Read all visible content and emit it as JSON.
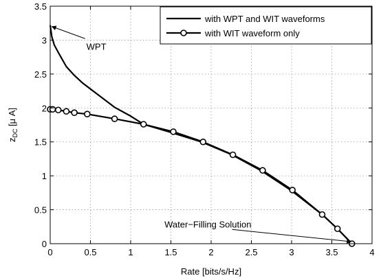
{
  "chart_data": {
    "type": "line",
    "title": "",
    "xlabel": "Rate [bits/s/Hz]",
    "ylabel": {
      "main": "z",
      "sub": "DC",
      "unit": " [μ A]"
    },
    "xlim": [
      0,
      4
    ],
    "ylim": [
      0,
      3.5
    ],
    "x_ticks": [
      0,
      0.5,
      1,
      1.5,
      2,
      2.5,
      3,
      3.5,
      4
    ],
    "x_tick_labels": [
      "0",
      "0.5",
      "1",
      "1.5",
      "2",
      "2.5",
      "3",
      "3.5",
      "4"
    ],
    "y_ticks": [
      0,
      0.5,
      1,
      1.5,
      2,
      2.5,
      3,
      3.5
    ],
    "y_tick_labels": [
      "0",
      "0.5",
      "1",
      "1.5",
      "2",
      "2.5",
      "3",
      "3.5"
    ],
    "grid": true,
    "legend_position": "top-right",
    "colors": {
      "line": "#000000",
      "grid": "#9a9a9a",
      "axes": "#000000",
      "marker_fill": "#ffffff"
    },
    "series": [
      {
        "name": "with WPT and WIT waveforms",
        "marker": "none",
        "x": [
          0,
          0.02,
          0.05,
          0.1,
          0.2,
          0.3,
          0.4,
          0.6,
          0.8,
          1.0,
          1.16,
          1.5,
          1.88,
          2.26,
          2.63,
          3.0,
          3.38,
          3.57,
          3.75
        ],
        "y": [
          3.22,
          3.05,
          2.93,
          2.82,
          2.61,
          2.48,
          2.37,
          2.19,
          2.01,
          1.88,
          1.76,
          1.64,
          1.5,
          1.31,
          1.07,
          0.78,
          0.43,
          0.22,
          0.0
        ]
      },
      {
        "name": "with WIT waveform only",
        "marker": "circle",
        "x": [
          0,
          0.03,
          0.1,
          0.2,
          0.3,
          0.46,
          0.8,
          1.16,
          1.53,
          1.9,
          2.27,
          2.64,
          3.01,
          3.38,
          3.57,
          3.75
        ],
        "y": [
          1.98,
          1.98,
          1.97,
          1.95,
          1.93,
          1.91,
          1.84,
          1.76,
          1.65,
          1.5,
          1.31,
          1.08,
          0.79,
          0.43,
          0.22,
          0.0
        ]
      }
    ],
    "annotations": [
      {
        "text": "WPT",
        "point": [
          0.02,
          3.2
        ],
        "text_at": [
          0.45,
          2.86
        ]
      },
      {
        "text": "Water−Filling Solution",
        "point": [
          3.74,
          0.03
        ],
        "text_at": [
          1.42,
          0.24
        ]
      }
    ]
  }
}
